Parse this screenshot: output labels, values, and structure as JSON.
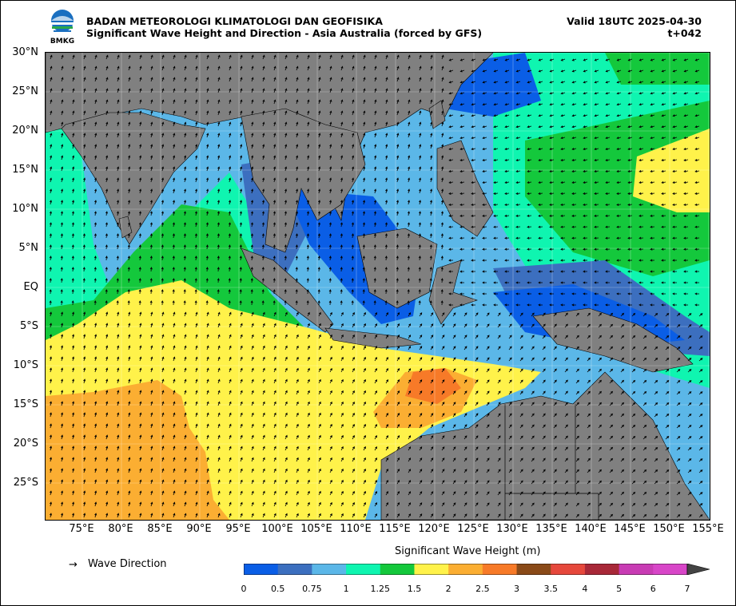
{
  "header": {
    "org": "BADAN METEOROLOGI KLIMATOLOGI DAN GEOFISIKA",
    "subtitle": "Significant Wave Height and Direction - Asia Australia (forced by GFS)",
    "valid": "Valid 18UTC 2025-04-30",
    "lead": "t+042",
    "logo_text": "BMKG"
  },
  "map": {
    "lat_labels": [
      "30°N",
      "25°N",
      "20°N",
      "15°N",
      "10°N",
      "5°N",
      "EQ",
      "5°S",
      "10°S",
      "15°S",
      "20°S",
      "25°S"
    ],
    "lon_labels": [
      "75°E",
      "80°E",
      "85°E",
      "90°E",
      "95°E",
      "100°E",
      "105°E",
      "110°E",
      "115°E",
      "120°E",
      "125°E",
      "130°E",
      "135°E",
      "140°E",
      "145°E",
      "150°E",
      "155°E"
    ],
    "land_color": "#808080",
    "arrow_color": "#000000"
  },
  "legend": {
    "arrow_symbol": "→",
    "direction_label": "Wave Direction"
  },
  "colorbar": {
    "title": "Significant Wave Height (m)",
    "ticks": [
      "0",
      "0.5",
      "0.75",
      "1",
      "1.25",
      "1.5",
      "2",
      "2.5",
      "3",
      "3.5",
      "4",
      "5",
      "6",
      "7"
    ],
    "colors": [
      "#0a5ee6",
      "#3c6fbf",
      "#5bb7e8",
      "#0ff5b0",
      "#14c83c",
      "#fff24a",
      "#fbae32",
      "#f77a28",
      "#8a4a18",
      "#e6483c",
      "#a82838",
      "#c83cb4",
      "#d846c8"
    ]
  }
}
